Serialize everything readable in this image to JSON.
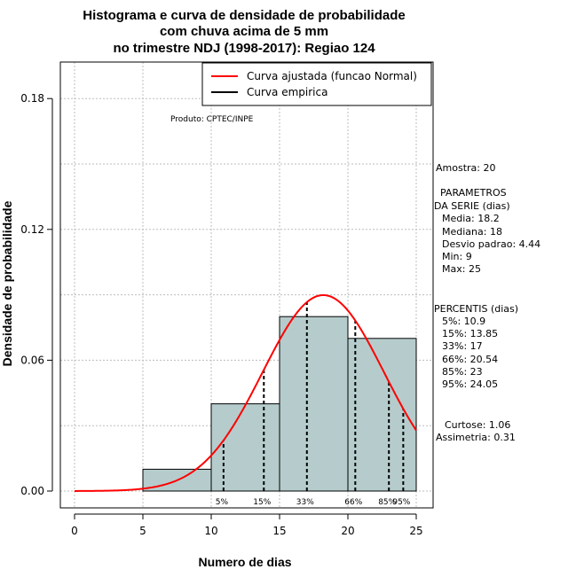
{
  "chart_data": {
    "type": "histogram",
    "title_lines": [
      "Histograma e curva de densidade de probabilidade",
      "com chuva acima de 5 mm",
      "no trimestre NDJ (1998-2017): Regiao 124"
    ],
    "xlabel": "Numero de dias",
    "ylabel": "Densidade de probabilidade",
    "xlim": [
      -1,
      25.5
    ],
    "ylim": [
      0,
      0.2
    ],
    "xticks": [
      0,
      5,
      10,
      15,
      20,
      25
    ],
    "yticks": [
      0.0,
      0.06,
      0.12,
      0.18
    ],
    "ytick_labels": [
      "0.00",
      "0.06",
      "0.12",
      "0.18"
    ],
    "bins": [
      {
        "from": 5,
        "to": 10,
        "density": 0.01
      },
      {
        "from": 10,
        "to": 15,
        "density": 0.04
      },
      {
        "from": 15,
        "to": 20,
        "density": 0.08
      },
      {
        "from": 20,
        "to": 25,
        "density": 0.07
      }
    ],
    "normal_fit": {
      "mean": 18.2,
      "sd": 4.44
    },
    "percentile_lines": [
      {
        "label": "5%",
        "value": 10.9
      },
      {
        "label": "15%",
        "value": 13.85
      },
      {
        "label": "33%",
        "value": 17
      },
      {
        "label": "66%",
        "value": 20.54
      },
      {
        "label": "85%",
        "value": 23
      },
      {
        "label": "95%",
        "value": 24.05
      }
    ],
    "legend": [
      {
        "label": "Curva ajustada (funcao Normal)",
        "color": "#ff0000"
      },
      {
        "label": "Curva empirica",
        "color": "#000000"
      }
    ],
    "legend_position": "top-right",
    "credit": "Produto: CPTEC/INPE",
    "bar_color": "#b6cccc",
    "curve_color": "#ff0000",
    "grid": true
  },
  "stats": {
    "amostra": "Amostra: 20",
    "parametros_title": "PARAMETROS",
    "parametros_subtitle": "DA SERIE (dias)",
    "parametros": [
      "Media: 18.2",
      "Mediana: 18",
      "Desvio padrao: 4.44",
      "Min: 9",
      "Max: 25"
    ],
    "percentis_title": "PERCENTIS (dias)",
    "percentis": [
      "5%: 10.9",
      "15%: 13.85",
      "33%: 17",
      "66%: 20.54",
      "85%: 23",
      "95%: 24.05"
    ],
    "curtose": "Curtose: 1.06",
    "assimetria": "Assimetria: 0.31"
  }
}
